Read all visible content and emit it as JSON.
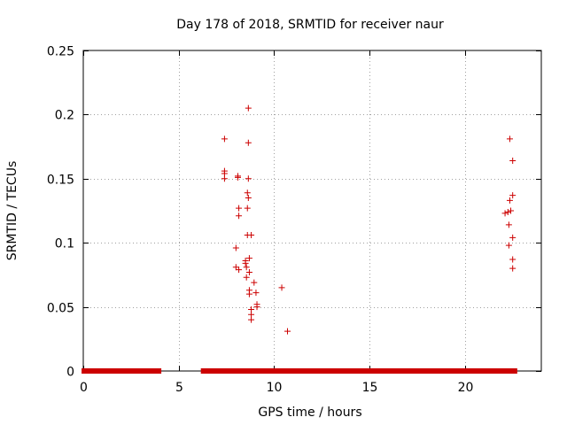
{
  "chart_data": {
    "type": "scatter",
    "title": "Day 178 of 2018, SRMTID for receiver naur",
    "xlabel": "GPS time / hours",
    "ylabel": "SRMTID / TECUs",
    "xlim": [
      0,
      24
    ],
    "ylim": [
      0,
      0.25
    ],
    "xticks": [
      0,
      5,
      10,
      15,
      20
    ],
    "xtick_labels": [
      "0",
      "5",
      "10",
      "15",
      "20"
    ],
    "yticks": [
      0,
      0.05,
      0.1,
      0.15,
      0.2,
      0.25
    ],
    "ytick_labels": [
      "0",
      "0.05",
      "0.1",
      "0.15",
      "0.2",
      "0.25"
    ],
    "grid": true,
    "marker": "+",
    "color": "#cc0000",
    "series": [
      {
        "name": "SRMTID",
        "points": [
          {
            "x": 7.4,
            "y": 0.181
          },
          {
            "x": 7.4,
            "y": 0.156
          },
          {
            "x": 7.4,
            "y": 0.154
          },
          {
            "x": 7.4,
            "y": 0.15
          },
          {
            "x": 8.0,
            "y": 0.096
          },
          {
            "x": 8.0,
            "y": 0.081
          },
          {
            "x": 8.1,
            "y": 0.152
          },
          {
            "x": 8.1,
            "y": 0.151
          },
          {
            "x": 8.15,
            "y": 0.127
          },
          {
            "x": 8.15,
            "y": 0.121
          },
          {
            "x": 8.15,
            "y": 0.079
          },
          {
            "x": 8.5,
            "y": 0.086
          },
          {
            "x": 8.5,
            "y": 0.084
          },
          {
            "x": 8.55,
            "y": 0.073
          },
          {
            "x": 8.55,
            "y": 0.081
          },
          {
            "x": 8.6,
            "y": 0.139
          },
          {
            "x": 8.6,
            "y": 0.127
          },
          {
            "x": 8.6,
            "y": 0.106
          },
          {
            "x": 8.65,
            "y": 0.205
          },
          {
            "x": 8.65,
            "y": 0.178
          },
          {
            "x": 8.65,
            "y": 0.15
          },
          {
            "x": 8.65,
            "y": 0.135
          },
          {
            "x": 8.7,
            "y": 0.088
          },
          {
            "x": 8.7,
            "y": 0.077
          },
          {
            "x": 8.7,
            "y": 0.063
          },
          {
            "x": 8.7,
            "y": 0.06
          },
          {
            "x": 8.8,
            "y": 0.106
          },
          {
            "x": 8.8,
            "y": 0.048
          },
          {
            "x": 8.8,
            "y": 0.044
          },
          {
            "x": 8.8,
            "y": 0.04
          },
          {
            "x": 8.95,
            "y": 0.069
          },
          {
            "x": 9.05,
            "y": 0.061
          },
          {
            "x": 9.1,
            "y": 0.052
          },
          {
            "x": 9.1,
            "y": 0.05
          },
          {
            "x": 10.4,
            "y": 0.065
          },
          {
            "x": 10.7,
            "y": 0.031
          },
          {
            "x": 22.1,
            "y": 0.123
          },
          {
            "x": 22.25,
            "y": 0.124
          },
          {
            "x": 22.3,
            "y": 0.114
          },
          {
            "x": 22.3,
            "y": 0.098
          },
          {
            "x": 22.35,
            "y": 0.181
          },
          {
            "x": 22.35,
            "y": 0.133
          },
          {
            "x": 22.4,
            "y": 0.125
          },
          {
            "x": 22.5,
            "y": 0.164
          },
          {
            "x": 22.5,
            "y": 0.137
          },
          {
            "x": 22.5,
            "y": 0.104
          },
          {
            "x": 22.5,
            "y": 0.087
          },
          {
            "x": 22.5,
            "y": 0.08
          }
        ],
        "zero_bands": [
          [
            0.05,
            3.95
          ],
          [
            6.3,
            22.6
          ]
        ]
      }
    ]
  }
}
